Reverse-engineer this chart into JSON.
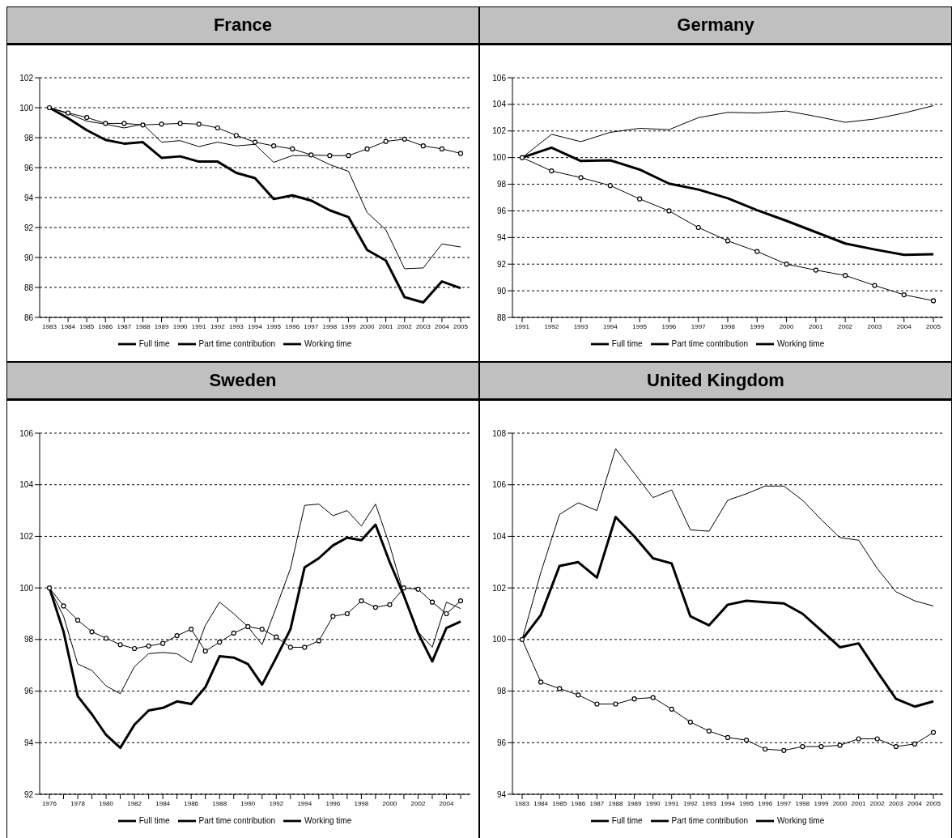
{
  "chart_data": [
    {
      "type": "line",
      "title": "France",
      "categories": [
        "1983",
        "1984",
        "1985",
        "1986",
        "1987",
        "1988",
        "1989",
        "1990",
        "1991",
        "1992",
        "1993",
        "1994",
        "1995",
        "1996",
        "1997",
        "1998",
        "1999",
        "2000",
        "2001",
        "2002",
        "2003",
        "2004",
        "2005"
      ],
      "series": [
        {
          "name": "Working time",
          "color": "#000000",
          "marker": "none",
          "values": [
            100,
            99.3,
            98.5,
            97.85,
            97.6,
            97.7,
            96.65,
            96.75,
            96.4,
            96.4,
            95.65,
            95.3,
            93.9,
            94.15,
            93.8,
            93.15,
            92.7,
            90.5,
            89.8,
            87.35,
            87.0,
            88.4,
            87.95
          ]
        },
        {
          "name": "Full time",
          "color": "#000000",
          "marker": "none",
          "values": [
            100,
            99.6,
            99.1,
            98.9,
            98.65,
            98.9,
            97.7,
            97.8,
            97.4,
            97.7,
            97.45,
            97.55,
            96.35,
            96.8,
            96.8,
            96.2,
            95.75,
            93.0,
            91.85,
            89.25,
            89.3,
            90.9,
            90.7
          ]
        },
        {
          "name": "Part time contribution",
          "color": "#000000",
          "marker": "circle",
          "values": [
            100,
            99.65,
            99.35,
            98.95,
            98.95,
            98.85,
            98.9,
            98.95,
            98.9,
            98.65,
            98.15,
            97.7,
            97.45,
            97.25,
            96.85,
            96.8,
            96.8,
            97.25,
            97.75,
            97.9,
            97.45,
            97.25,
            96.95
          ]
        }
      ],
      "ylim": [
        86,
        102
      ],
      "yticks": [
        86,
        88,
        90,
        92,
        94,
        96,
        98,
        100,
        102
      ],
      "grid": "y",
      "legend": "bottom",
      "line_style": "solid"
    },
    {
      "type": "line",
      "title": "Germany",
      "categories": [
        "1991",
        "1992",
        "1993",
        "1994",
        "1995",
        "1996",
        "1997",
        "1998",
        "1999",
        "2000",
        "2001",
        "2002",
        "2003",
        "2004",
        "2005"
      ],
      "series": [
        {
          "name": "Working time",
          "color": "#000000",
          "marker": "none",
          "values": [
            100,
            100.75,
            99.75,
            99.8,
            99.1,
            98.05,
            97.6,
            96.95,
            96.05,
            95.25,
            94.4,
            93.55,
            93.1,
            92.7,
            92.75
          ]
        },
        {
          "name": "Full time",
          "color": "#000000",
          "marker": "none",
          "values": [
            100,
            101.75,
            101.2,
            101.9,
            102.2,
            102.1,
            103.0,
            103.4,
            103.35,
            103.5,
            103.1,
            102.65,
            102.9,
            103.35,
            103.9
          ]
        },
        {
          "name": "Part time contribution",
          "color": "#000000",
          "marker": "circle",
          "values": [
            100,
            99.0,
            98.5,
            97.9,
            96.9,
            96.0,
            94.75,
            93.75,
            92.95,
            92.0,
            91.55,
            91.15,
            90.4,
            89.7,
            89.25
          ]
        }
      ],
      "ylim": [
        88,
        106
      ],
      "yticks": [
        88,
        90,
        92,
        94,
        96,
        98,
        100,
        102,
        104,
        106
      ],
      "grid": "y",
      "legend": "bottom",
      "line_style": "solid"
    },
    {
      "type": "line",
      "title": "Sweden",
      "categories": [
        "1976",
        null,
        "1978",
        null,
        "1980",
        null,
        "1982",
        null,
        "1984",
        null,
        "1986",
        null,
        "1988",
        null,
        "1990",
        null,
        "1992",
        null,
        "1994",
        null,
        "1996",
        null,
        "1998",
        null,
        "2000",
        null,
        "2002",
        null,
        "2004",
        null
      ],
      "series": [
        {
          "name": "Working time",
          "color": "#000000",
          "marker": "none",
          "values": [
            100,
            98.3,
            95.8,
            95.1,
            94.3,
            93.8,
            94.7,
            95.25,
            95.35,
            95.6,
            95.5,
            96.15,
            97.35,
            97.3,
            97.05,
            96.25,
            97.3,
            98.4,
            100.8,
            101.15,
            101.65,
            101.95,
            101.85,
            102.45,
            101.0,
            99.7,
            98.25,
            97.15,
            98.45,
            98.7
          ]
        },
        {
          "name": "Full time",
          "color": "#000000",
          "marker": "none",
          "values": [
            100,
            98.9,
            97.05,
            96.8,
            96.2,
            95.9,
            96.95,
            97.45,
            97.5,
            97.45,
            97.1,
            98.55,
            99.45,
            99.0,
            98.5,
            97.8,
            99.25,
            100.75,
            103.2,
            103.25,
            102.8,
            103.0,
            102.4,
            103.25,
            101.65,
            99.75,
            98.3,
            97.7,
            99.45,
            99.2
          ]
        },
        {
          "name": "Part time contribution",
          "color": "#000000",
          "marker": "circle",
          "values": [
            100,
            99.3,
            98.75,
            98.3,
            98.05,
            97.8,
            97.65,
            97.75,
            97.85,
            98.15,
            98.4,
            97.55,
            97.9,
            98.25,
            98.5,
            98.4,
            98.1,
            97.7,
            97.7,
            97.95,
            98.9,
            99.0,
            99.5,
            99.25,
            99.35,
            100.0,
            99.95,
            99.45,
            99.0,
            99.5
          ]
        }
      ],
      "ylim": [
        92,
        106
      ],
      "yticks": [
        92,
        94,
        96,
        98,
        100,
        102,
        104,
        106
      ],
      "grid": "y",
      "legend": "bottom",
      "line_style": "solid"
    },
    {
      "type": "line",
      "title": "United Kingdom",
      "categories": [
        "1983",
        "1984",
        "1985",
        "1986",
        "1987",
        "1988",
        "1989",
        "1990",
        "1991",
        "1992",
        "1993",
        "1994",
        "1995",
        "1996",
        "1997",
        "1998",
        "1999",
        "2000",
        "2001",
        "2002",
        "2003",
        "2004",
        "2005"
      ],
      "series": [
        {
          "name": "Working time",
          "color": "#000000",
          "marker": "none",
          "values": [
            100,
            100.95,
            102.85,
            103.0,
            102.4,
            104.75,
            104.0,
            103.15,
            102.95,
            100.9,
            100.55,
            101.35,
            101.5,
            101.45,
            101.4,
            101.0,
            100.35,
            99.7,
            99.85,
            98.75,
            97.7,
            97.4,
            97.6
          ]
        },
        {
          "name": "Full time",
          "color": "#000000",
          "marker": "none",
          "values": [
            100,
            102.6,
            104.85,
            105.3,
            105.0,
            107.4,
            106.45,
            105.5,
            105.8,
            104.25,
            104.2,
            105.4,
            105.65,
            105.95,
            105.95,
            105.4,
            104.65,
            103.95,
            103.85,
            102.75,
            101.85,
            101.5,
            101.3
          ]
        },
        {
          "name": "Part time contribution",
          "color": "#000000",
          "marker": "circle",
          "values": [
            100,
            98.35,
            98.1,
            97.85,
            97.5,
            97.5,
            97.7,
            97.75,
            97.3,
            96.8,
            96.45,
            96.2,
            96.1,
            95.75,
            95.7,
            95.85,
            95.85,
            95.9,
            96.15,
            96.15,
            95.85,
            95.95,
            96.4
          ]
        }
      ],
      "ylim": [
        94,
        108
      ],
      "yticks": [
        94,
        96,
        98,
        100,
        102,
        104,
        106,
        108
      ],
      "grid": "y",
      "legend": "bottom",
      "line_style": "solid"
    }
  ]
}
